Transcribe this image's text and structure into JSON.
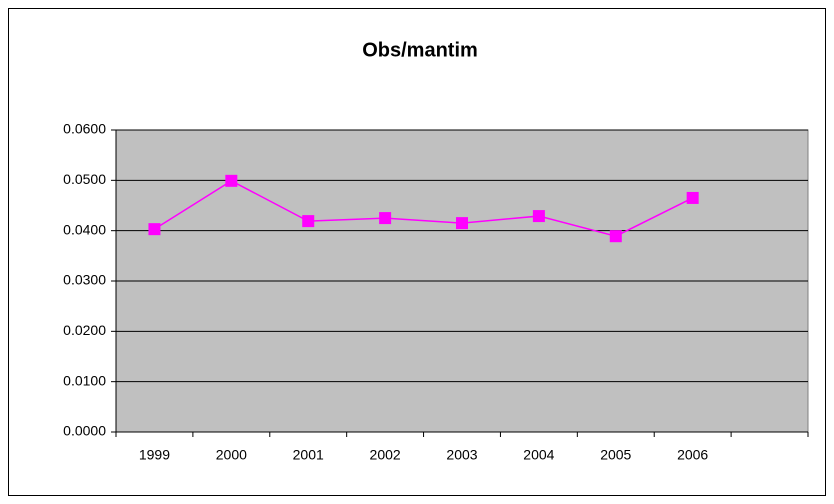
{
  "chart_data": {
    "type": "line",
    "title": "Obs/mantim",
    "categories": [
      "1999",
      "2000",
      "2001",
      "2002",
      "2003",
      "2004",
      "2005",
      "2006",
      null
    ],
    "series": [
      {
        "name": "Obs/mantim",
        "color": "#ff00ff",
        "values": [
          0.0403,
          0.0499,
          0.0419,
          0.0425,
          0.0415,
          0.0429,
          0.0389,
          0.0465,
          null
        ]
      }
    ],
    "ylim": [
      0,
      0.06
    ],
    "yticks": [
      {
        "value": 0,
        "label": "0.0000"
      },
      {
        "value": 0.01,
        "label": "0.0100"
      },
      {
        "value": 0.02,
        "label": "0.0200"
      },
      {
        "value": 0.03,
        "label": "0.0300"
      },
      {
        "value": 0.04,
        "label": "0.0400"
      },
      {
        "value": 0.05,
        "label": "0.0500"
      },
      {
        "value": 0.06,
        "label": "0.0600"
      }
    ],
    "grid": true,
    "plot_background": "#c0c0c0"
  }
}
